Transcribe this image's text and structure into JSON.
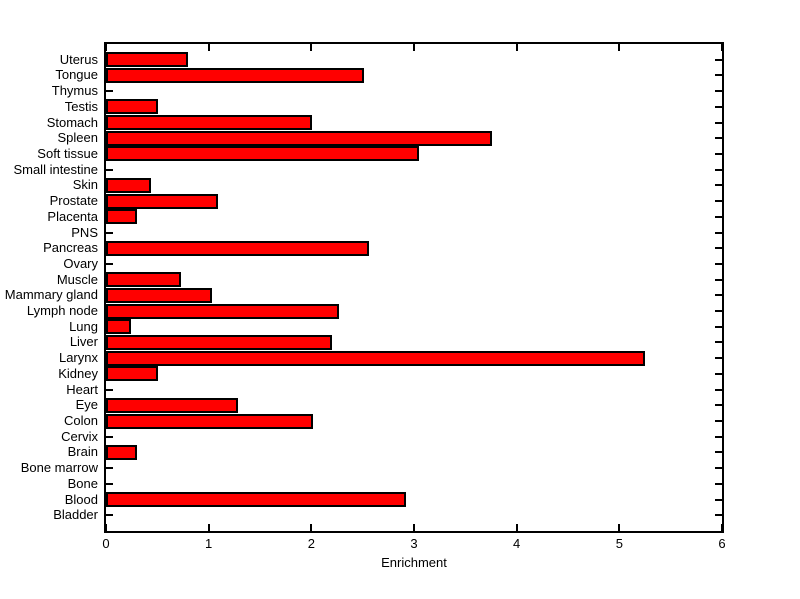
{
  "chart_data": {
    "type": "bar",
    "orientation": "horizontal",
    "title": "",
    "xlabel": "Enrichment",
    "ylabel": "",
    "xlim": [
      0,
      6
    ],
    "xticks": [
      0,
      1,
      2,
      3,
      4,
      5,
      6
    ],
    "grid": false,
    "legend": null,
    "bar_color": "#FF0000",
    "bar_edge_color": "#000000",
    "axis_color": "#000000",
    "background_color": "#FFFFFF",
    "categories": [
      "Uterus",
      "Tongue",
      "Thymus",
      "Testis",
      "Stomach",
      "Spleen",
      "Soft tissue",
      "Small intestine",
      "Skin",
      "Prostate",
      "Placenta",
      "PNS",
      "Pancreas",
      "Ovary",
      "Muscle",
      "Mammary gland",
      "Lymph node",
      "Lung",
      "Liver",
      "Larynx",
      "Kidney",
      "Heart",
      "Eye",
      "Colon",
      "Cervix",
      "Brain",
      "Bone marrow",
      "Bone",
      "Blood",
      "Bladder"
    ],
    "values": [
      0.8,
      2.51,
      0,
      0.51,
      2.01,
      3.76,
      3.05,
      0,
      0.44,
      1.09,
      0.3,
      0,
      2.56,
      0,
      0.73,
      1.03,
      2.27,
      0.24,
      2.2,
      5.25,
      0.51,
      0,
      1.29,
      2.02,
      0,
      0.3,
      0,
      0,
      2.92,
      0
    ],
    "category_order_note": "listed top-to-bottom as rendered"
  }
}
